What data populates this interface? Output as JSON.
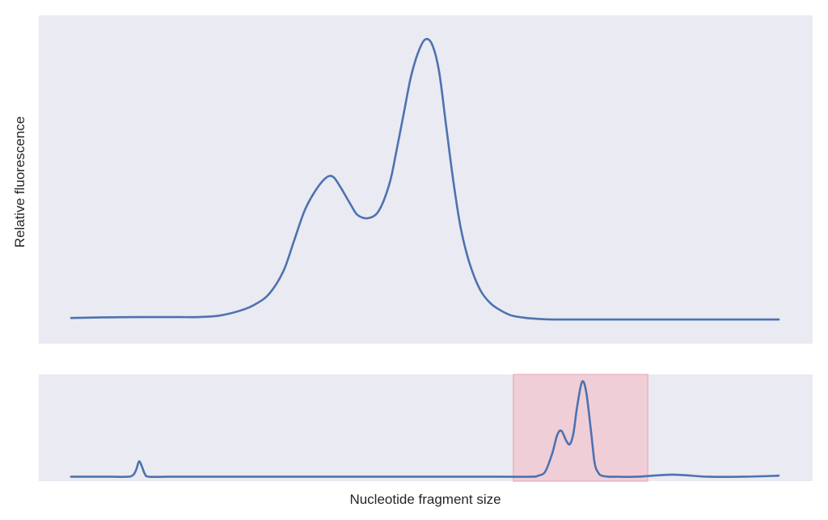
{
  "chart_data": [
    {
      "type": "line",
      "panel": "main",
      "title": "",
      "xlabel": "",
      "ylabel": "Relative fluorescence",
      "xlim": [
        0,
        100
      ],
      "ylim": [
        0,
        100
      ],
      "grid": false,
      "series": [
        {
          "color": "#4c72b0",
          "x": [
            0,
            5,
            10,
            15,
            18,
            21,
            24,
            26,
            28,
            30,
            31.5,
            33,
            34.5,
            36,
            37,
            38,
            39.5,
            40.5,
            42,
            43.5,
            45,
            46,
            47,
            48,
            49,
            50,
            51,
            52,
            53,
            54,
            55,
            56,
            57,
            58,
            59,
            60,
            62,
            64,
            66,
            68,
            70,
            75,
            80,
            85,
            90,
            95,
            100
          ],
          "values": [
            4.5,
            4.7,
            4.8,
            4.8,
            4.8,
            5.3,
            7.0,
            9.0,
            12.5,
            20,
            30,
            40,
            46.5,
            50.8,
            51.2,
            48,
            42,
            38.5,
            37.5,
            40,
            49,
            60,
            72,
            84,
            92,
            96.5,
            95,
            86,
            68,
            50,
            35,
            25,
            18,
            13,
            10,
            8,
            5.5,
            4.6,
            4.2,
            4.0,
            4.0,
            4.0,
            4.0,
            4.0,
            4.0,
            4.0,
            4.0
          ]
        }
      ]
    },
    {
      "type": "line",
      "panel": "bottom",
      "title": "",
      "xlabel": "Nucleotide fragment size",
      "ylabel": "",
      "xlim": [
        0,
        100
      ],
      "ylim": [
        0,
        100
      ],
      "grid": false,
      "highlight": {
        "x0": 62.5,
        "x1": 81.5,
        "color": "#f4b6c2"
      },
      "series": [
        {
          "color": "#4c72b0",
          "x": [
            0,
            5,
            8,
            8.8,
            9.2,
            9.6,
            10.0,
            10.4,
            11,
            14,
            20,
            30,
            40,
            50,
            60,
            65,
            66,
            67,
            68,
            68.7,
            69.3,
            70,
            70.5,
            71,
            71.5,
            72.2,
            72.8,
            73.5,
            74,
            74.5,
            75,
            76,
            77,
            80,
            85,
            90,
            95,
            100
          ],
          "values": [
            2,
            2,
            2,
            4,
            9,
            17,
            12,
            5,
            2,
            2,
            2,
            2,
            2,
            2,
            2,
            2,
            3,
            7,
            25,
            43,
            47,
            37,
            34,
            45,
            70,
            95,
            85,
            45,
            15,
            6,
            3,
            2,
            2,
            2,
            4,
            2,
            2,
            3
          ]
        }
      ]
    }
  ]
}
